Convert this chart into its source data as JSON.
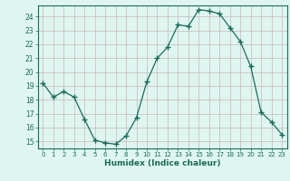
{
  "x": [
    0,
    1,
    2,
    3,
    4,
    5,
    6,
    7,
    8,
    9,
    10,
    11,
    12,
    13,
    14,
    15,
    16,
    17,
    18,
    19,
    20,
    21,
    22,
    23
  ],
  "y": [
    19.2,
    18.2,
    18.6,
    18.2,
    16.6,
    15.1,
    14.9,
    14.8,
    15.4,
    16.7,
    19.3,
    21.0,
    21.8,
    23.4,
    23.3,
    24.5,
    24.4,
    24.2,
    23.2,
    22.2,
    20.4,
    17.1,
    16.4,
    15.5
  ],
  "line_color": "#1a6b5a",
  "marker": "+",
  "marker_size": 4,
  "bg_color": "#dff5f0",
  "grid_color": "#c4b8b8",
  "xlabel": "Humidex (Indice chaleur)",
  "ylabel_ticks": [
    15,
    16,
    17,
    18,
    19,
    20,
    21,
    22,
    23,
    24
  ],
  "xlim": [
    -0.5,
    23.5
  ],
  "ylim": [
    14.5,
    24.8
  ]
}
